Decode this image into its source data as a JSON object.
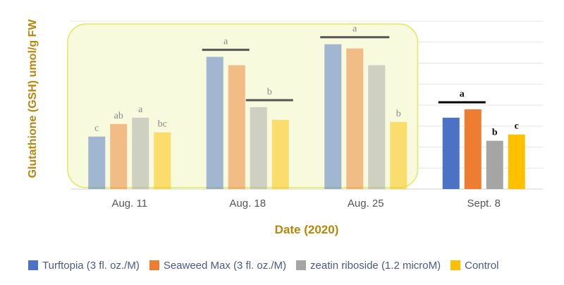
{
  "chart_data": {
    "type": "bar",
    "title": "",
    "xlabel": "Date (2020)",
    "ylabel": "Glutathione (GSH) umol/g FW",
    "ylim": [
      0,
      8
    ],
    "grid": true,
    "legend_position": "bottom",
    "categories": [
      "Aug. 11",
      "Aug. 18",
      "Aug. 25",
      "Sept. 8"
    ],
    "series": [
      {
        "name": "Turftopia (3 fl. oz./M)",
        "color": "#4b72c4",
        "values": [
          2.5,
          6.3,
          6.9,
          3.4
        ]
      },
      {
        "name": "Seaweed Max (3 fl. oz./M)",
        "color": "#ed7d31",
        "values": [
          3.1,
          5.9,
          6.7,
          3.8
        ]
      },
      {
        "name": "zeatin riboside (1.2 microM)",
        "color": "#a5a5a5",
        "values": [
          3.4,
          3.9,
          5.9,
          2.3
        ]
      },
      {
        "name": "Control",
        "color": "#ffc000",
        "values": [
          2.7,
          3.3,
          3.2,
          2.6
        ]
      }
    ],
    "faded_categories": [
      "Aug. 11",
      "Aug. 18",
      "Aug. 25"
    ],
    "significance_letters": [
      [
        "c",
        "ab",
        "a",
        "bc"
      ],
      [
        "a",
        "a",
        "b",
        "b"
      ],
      [
        "a",
        "a",
        "a",
        "b"
      ],
      [
        "a",
        "a",
        "b",
        "c"
      ]
    ]
  }
}
